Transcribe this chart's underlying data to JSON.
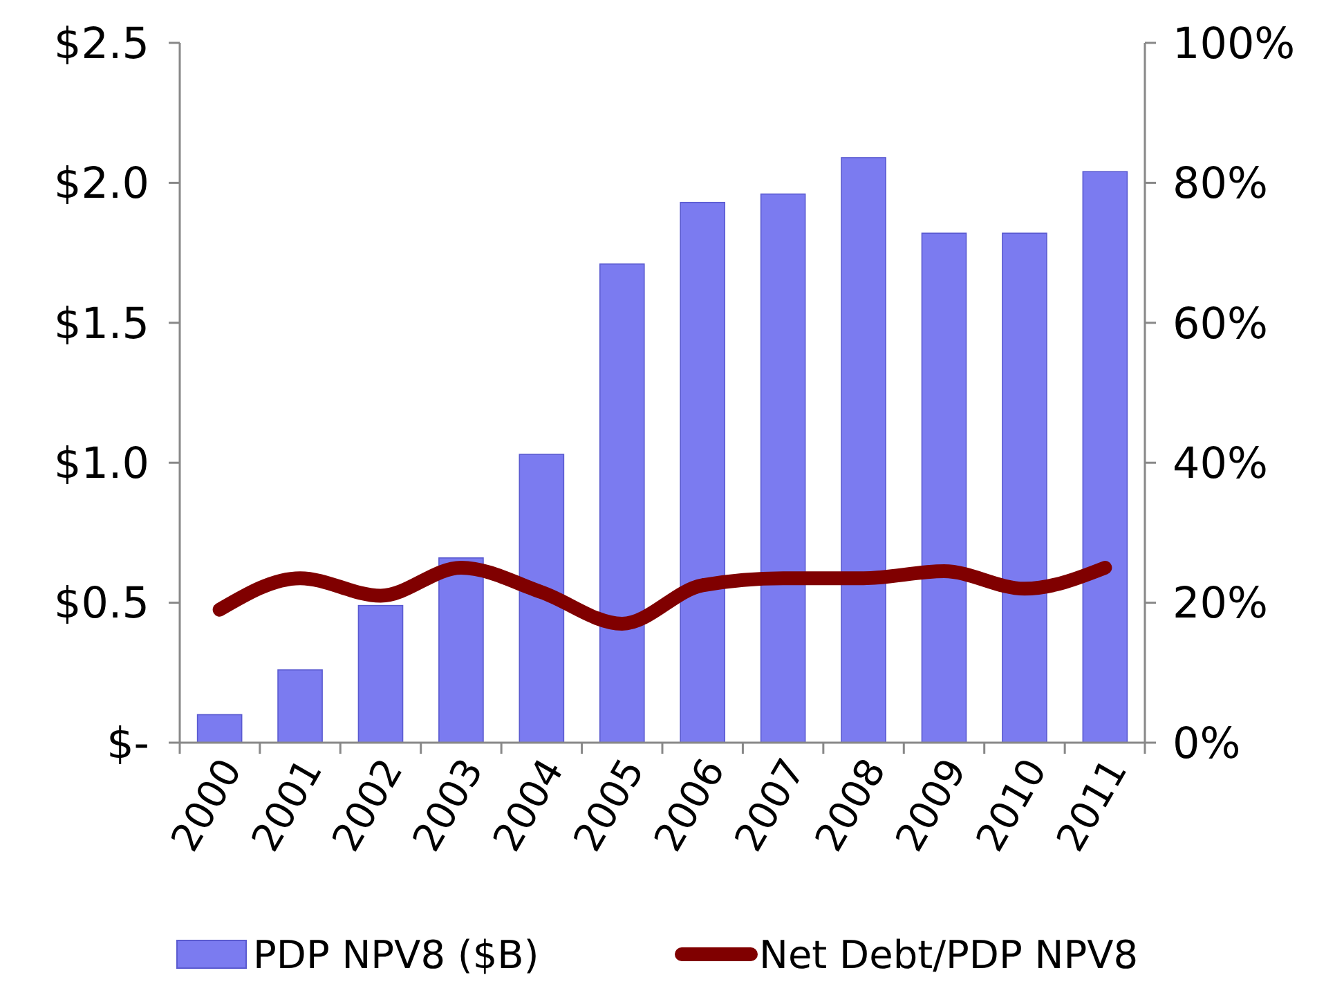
{
  "chart_data": {
    "type": "bar",
    "categories": [
      "2000",
      "2001",
      "2002",
      "2003",
      "2004",
      "2005",
      "2006",
      "2007",
      "2008",
      "2009",
      "2010",
      "2011"
    ],
    "series": [
      {
        "name": "PDP NPV8 ($B)",
        "color": "#7b7bf0",
        "values": [
          0.1,
          0.26,
          0.49,
          0.66,
          1.03,
          1.71,
          1.93,
          1.96,
          2.09,
          1.82,
          1.82,
          2.04
        ]
      },
      {
        "name": "Net Debt/PDP NPV8",
        "type": "line",
        "axis": "y2",
        "color": "#800000",
        "values": [
          19,
          23.5,
          21,
          25,
          21.5,
          17,
          22.5,
          23.5,
          23.5,
          24.5,
          22,
          25
        ]
      }
    ],
    "ylim": [
      0,
      2.5
    ],
    "yticks": [
      {
        "value": 0,
        "label": "$-"
      },
      {
        "value": 0.5,
        "label": "$0.5"
      },
      {
        "value": 1,
        "label": "$1.0"
      },
      {
        "value": 1.5,
        "label": "$1.5"
      },
      {
        "value": 2,
        "label": "$2.0"
      },
      {
        "value": 2.5,
        "label": "$2.5"
      }
    ],
    "y2lim": [
      0,
      100
    ],
    "y2ticks": [
      {
        "value": 0,
        "label": "0%"
      },
      {
        "value": 20,
        "label": "20%"
      },
      {
        "value": 40,
        "label": "40%"
      },
      {
        "value": 60,
        "label": "60%"
      },
      {
        "value": 80,
        "label": "80%"
      },
      {
        "value": 100,
        "label": "100%"
      }
    ],
    "grid": false,
    "legend": "bottom"
  }
}
